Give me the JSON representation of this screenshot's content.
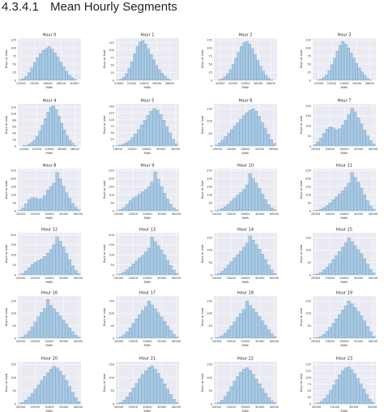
{
  "section": {
    "number": "4.3.4.1",
    "title": "Mean Hourly Segments"
  },
  "style": {
    "panel_bg": "#eaeaf2",
    "bar_fill": "#a8c8e2",
    "bar_stroke": "#5f93be",
    "grid_color": "#ffffff",
    "text_color": "#333333"
  },
  "chart_data": [
    {
      "type": "bar",
      "title": "Hour 0",
      "xlabel": "MWh",
      "ylabel": "Days at load",
      "x_ticks": [
        22000,
        24000,
        26000,
        28000,
        30000
      ],
      "xlim": [
        21500,
        31000
      ],
      "y_ticks": [
        0,
        25,
        50,
        75,
        100,
        125
      ],
      "ylim": [
        0,
        130
      ],
      "values": [
        2,
        5,
        12,
        24,
        38,
        55,
        70,
        82,
        92,
        98,
        104,
        96,
        84,
        72,
        56,
        42,
        28,
        16,
        8,
        3
      ]
    },
    {
      "type": "bar",
      "title": "Hour 1",
      "xlabel": "MWh",
      "ylabel": "Days at load",
      "x_ticks": [
        20000,
        22000,
        24000,
        26000,
        28000
      ],
      "xlim": [
        19500,
        29500
      ],
      "y_ticks": [
        0,
        25,
        50,
        75,
        100,
        125
      ],
      "ylim": [
        0,
        140
      ],
      "values": [
        1,
        4,
        10,
        22,
        40,
        62,
        88,
        112,
        128,
        132,
        120,
        104,
        86,
        68,
        50,
        36,
        24,
        14,
        6,
        2
      ]
    },
    {
      "type": "bar",
      "title": "Hour 2",
      "xlabel": "MWh",
      "ylabel": "Days at load",
      "x_ticks": [
        20000,
        22000,
        24000,
        26000,
        28000
      ],
      "xlim": [
        19000,
        29000
      ],
      "y_ticks": [
        0,
        25,
        50,
        75,
        100,
        125
      ],
      "ylim": [
        0,
        130
      ],
      "values": [
        2,
        5,
        11,
        20,
        33,
        50,
        68,
        86,
        104,
        116,
        120,
        112,
        98,
        80,
        62,
        44,
        28,
        16,
        7,
        2
      ]
    },
    {
      "type": "bar",
      "title": "Hour 3",
      "xlabel": "MWh",
      "ylabel": "Days at load",
      "x_ticks": [
        20000,
        22000,
        24000,
        26000,
        28000
      ],
      "xlim": [
        19000,
        29000
      ],
      "y_ticks": [
        0,
        25,
        50,
        75,
        100,
        125
      ],
      "ylim": [
        0,
        130
      ],
      "values": [
        1,
        3,
        8,
        16,
        30,
        48,
        68,
        90,
        108,
        120,
        112,
        100,
        84,
        68,
        52,
        38,
        26,
        15,
        7,
        2
      ]
    },
    {
      "type": "bar",
      "title": "Hour 4",
      "xlabel": "MWh",
      "ylabel": "Days at load",
      "x_ticks": [
        20000,
        22000,
        24000,
        26000,
        28000
      ],
      "xlim": [
        19000,
        29000
      ],
      "y_ticks": [
        0,
        20,
        40,
        60,
        80,
        100,
        120
      ],
      "ylim": [
        0,
        130
      ],
      "values": [
        1,
        2,
        5,
        10,
        18,
        30,
        46,
        64,
        84,
        104,
        120,
        124,
        112,
        92,
        70,
        50,
        32,
        18,
        8,
        2
      ]
    },
    {
      "type": "bar",
      "title": "Hour 5",
      "xlabel": "MWh",
      "ylabel": "Days at load",
      "x_ticks": [
        18000,
        22000,
        26000,
        30000,
        34000
      ],
      "xlim": [
        17500,
        35000
      ],
      "y_ticks": [
        0,
        25,
        50,
        75,
        100,
        125,
        150
      ],
      "ylim": [
        0,
        160
      ],
      "values": [
        1,
        3,
        6,
        12,
        20,
        32,
        46,
        62,
        80,
        98,
        116,
        132,
        142,
        136,
        120,
        98,
        74,
        50,
        26,
        8
      ]
    },
    {
      "type": "bar",
      "title": "Hour 6",
      "xlabel": "MWh",
      "ylabel": "Days at load",
      "x_ticks": [
        20000,
        24000,
        28000,
        32000,
        36000
      ],
      "xlim": [
        19000,
        37000
      ],
      "y_ticks": [
        0,
        50,
        100,
        150
      ],
      "ylim": [
        0,
        170
      ],
      "values": [
        4,
        12,
        24,
        38,
        52,
        66,
        80,
        94,
        108,
        122,
        134,
        144,
        150,
        140,
        120,
        96,
        72,
        48,
        26,
        10
      ]
    },
    {
      "type": "bar",
      "title": "Hour 7",
      "xlabel": "MWh",
      "ylabel": "Days at load",
      "x_ticks": [
        20000,
        25000,
        30000,
        35000,
        40000
      ],
      "xlim": [
        19000,
        41000
      ],
      "y_ticks": [
        0,
        50,
        100,
        150,
        200
      ],
      "ylim": [
        0,
        210
      ],
      "values": [
        6,
        20,
        40,
        62,
        84,
        96,
        90,
        80,
        86,
        104,
        128,
        156,
        188,
        170,
        140,
        110,
        80,
        52,
        28,
        10
      ]
    },
    {
      "type": "bar",
      "title": "Hour 8",
      "xlabel": "MWh",
      "ylabel": "Days at load",
      "x_ticks": [
        20000,
        25000,
        30000,
        35000,
        40000
      ],
      "xlim": [
        19000,
        41000
      ],
      "y_ticks": [
        0,
        50,
        100,
        150,
        200,
        250
      ],
      "ylim": [
        0,
        260
      ],
      "values": [
        4,
        18,
        44,
        70,
        82,
        80,
        72,
        76,
        96,
        128,
        150,
        170,
        236,
        198,
        152,
        112,
        78,
        46,
        22,
        6
      ]
    },
    {
      "type": "bar",
      "title": "Hour 9",
      "xlabel": "MWh",
      "ylabel": "Days at load",
      "x_ticks": [
        20000,
        25000,
        30000,
        35000,
        40000
      ],
      "xlim": [
        19000,
        41000
      ],
      "y_ticks": [
        0,
        50,
        100,
        150,
        200,
        250
      ],
      "ylim": [
        0,
        260
      ],
      "values": [
        2,
        8,
        20,
        40,
        62,
        80,
        92,
        104,
        118,
        132,
        150,
        176,
        240,
        196,
        150,
        108,
        72,
        42,
        18,
        6
      ]
    },
    {
      "type": "bar",
      "title": "Hour 10",
      "xlabel": "MWh",
      "ylabel": "Days at load",
      "x_ticks": [
        20000,
        25000,
        30000,
        35000,
        40000
      ],
      "xlim": [
        19000,
        41000
      ],
      "y_ticks": [
        0,
        50,
        100,
        150,
        200,
        250
      ],
      "ylim": [
        0,
        260
      ],
      "values": [
        2,
        6,
        14,
        26,
        42,
        60,
        78,
        96,
        112,
        132,
        160,
        230,
        200,
        172,
        140,
        104,
        70,
        40,
        18,
        6
      ]
    },
    {
      "type": "bar",
      "title": "Hour 11",
      "xlabel": "MWh",
      "ylabel": "Days at load",
      "x_ticks": [
        20000,
        25000,
        30000,
        35000,
        40000
      ],
      "xlim": [
        19000,
        41000
      ],
      "y_ticks": [
        0,
        50,
        100,
        150,
        200,
        250
      ],
      "ylim": [
        0,
        260
      ],
      "values": [
        2,
        4,
        10,
        20,
        34,
        50,
        68,
        86,
        104,
        124,
        146,
        170,
        236,
        206,
        176,
        140,
        100,
        62,
        30,
        10
      ]
    },
    {
      "type": "bar",
      "title": "Hour 12",
      "xlabel": "MWh",
      "ylabel": "Days at load",
      "x_ticks": [
        20000,
        25000,
        30000,
        35000,
        40000
      ],
      "xlim": [
        19000,
        41000
      ],
      "y_ticks": [
        0,
        50,
        100,
        150,
        200
      ],
      "ylim": [
        0,
        210
      ],
      "values": [
        2,
        8,
        20,
        36,
        52,
        64,
        72,
        80,
        92,
        108,
        126,
        150,
        190,
        168,
        140,
        108,
        76,
        46,
        22,
        6
      ]
    },
    {
      "type": "bar",
      "title": "Hour 13",
      "xlabel": "MWh",
      "ylabel": "Days at load",
      "x_ticks": [
        20000,
        25000,
        30000,
        35000,
        40000
      ],
      "xlim": [
        19000,
        41000
      ],
      "y_ticks": [
        0,
        50,
        100,
        150,
        200
      ],
      "ylim": [
        0,
        210
      ],
      "values": [
        2,
        6,
        14,
        26,
        40,
        56,
        70,
        84,
        98,
        114,
        134,
        188,
        166,
        146,
        124,
        100,
        74,
        48,
        24,
        8
      ]
    },
    {
      "type": "bar",
      "title": "Hour 14",
      "xlabel": "MWh",
      "ylabel": "Days at load",
      "x_ticks": [
        20000,
        25000,
        30000,
        35000,
        40000
      ],
      "xlim": [
        19000,
        41000
      ],
      "y_ticks": [
        0,
        50,
        100,
        150
      ],
      "ylim": [
        0,
        170
      ],
      "values": [
        2,
        6,
        14,
        26,
        40,
        54,
        68,
        82,
        96,
        112,
        128,
        158,
        140,
        122,
        104,
        84,
        62,
        40,
        20,
        6
      ]
    },
    {
      "type": "bar",
      "title": "Hour 15",
      "xlabel": "MWh",
      "ylabel": "Days at load",
      "x_ticks": [
        20000,
        25000,
        30000,
        35000,
        40000
      ],
      "xlim": [
        19000,
        41000
      ],
      "y_ticks": [
        0,
        50,
        100,
        150
      ],
      "ylim": [
        0,
        170
      ],
      "values": [
        2,
        4,
        10,
        20,
        32,
        46,
        62,
        78,
        94,
        112,
        130,
        150,
        134,
        118,
        102,
        86,
        66,
        44,
        22,
        8
      ]
    },
    {
      "type": "bar",
      "title": "Hour 16",
      "xlabel": "MWh",
      "ylabel": "Days at load",
      "x_ticks": [
        20000,
        25000,
        30000,
        35000,
        40000
      ],
      "xlim": [
        19000,
        41000
      ],
      "y_ticks": [
        0,
        50,
        100,
        150
      ],
      "ylim": [
        0,
        170
      ],
      "values": [
        2,
        6,
        14,
        28,
        46,
        66,
        86,
        104,
        120,
        156,
        132,
        118,
        104,
        90,
        74,
        58,
        42,
        26,
        12,
        4
      ]
    },
    {
      "type": "bar",
      "title": "Hour 17",
      "xlabel": "MWh",
      "ylabel": "Days at load",
      "x_ticks": [
        20000,
        25000,
        30000,
        35000,
        40000
      ],
      "xlim": [
        19000,
        41000
      ],
      "y_ticks": [
        0,
        50,
        100,
        150
      ],
      "ylim": [
        0,
        170
      ],
      "values": [
        2,
        6,
        14,
        26,
        42,
        60,
        78,
        96,
        112,
        128,
        150,
        134,
        118,
        102,
        86,
        68,
        50,
        32,
        16,
        5
      ]
    },
    {
      "type": "bar",
      "title": "Hour 18",
      "xlabel": "MWh",
      "ylabel": "Days at load",
      "x_ticks": [
        20000,
        25000,
        30000,
        35000,
        40000
      ],
      "xlim": [
        19000,
        41000
      ],
      "y_ticks": [
        0,
        50,
        100,
        150
      ],
      "ylim": [
        0,
        170
      ],
      "values": [
        1,
        4,
        10,
        20,
        34,
        50,
        66,
        84,
        100,
        116,
        150,
        132,
        118,
        104,
        88,
        70,
        52,
        34,
        18,
        6
      ]
    },
    {
      "type": "bar",
      "title": "Hour 19",
      "xlabel": "MWh",
      "ylabel": "Days at load",
      "x_ticks": [
        20000,
        25000,
        30000,
        35000,
        40000
      ],
      "xlim": [
        19000,
        41000
      ],
      "y_ticks": [
        0,
        50,
        100,
        150
      ],
      "ylim": [
        0,
        170
      ],
      "values": [
        1,
        3,
        8,
        16,
        28,
        44,
        60,
        78,
        96,
        114,
        130,
        150,
        138,
        124,
        108,
        90,
        70,
        48,
        26,
        8
      ]
    },
    {
      "type": "bar",
      "title": "Hour 20",
      "xlabel": "MWh",
      "ylabel": "Days at load",
      "x_ticks": [
        20000,
        25000,
        30000,
        35000,
        40000
      ],
      "xlim": [
        19000,
        41000
      ],
      "y_ticks": [
        0,
        50,
        100,
        150
      ],
      "ylim": [
        0,
        160
      ],
      "values": [
        2,
        6,
        14,
        26,
        40,
        56,
        72,
        88,
        104,
        118,
        132,
        142,
        136,
        124,
        108,
        88,
        66,
        44,
        24,
        8
      ]
    },
    {
      "type": "bar",
      "title": "Hour 21",
      "xlabel": "MWh",
      "ylabel": "Days at load",
      "x_ticks": [
        20000,
        25000,
        30000,
        35000,
        40000
      ],
      "xlim": [
        19000,
        41000
      ],
      "y_ticks": [
        0,
        50,
        100,
        150
      ],
      "ylim": [
        0,
        160
      ],
      "values": [
        2,
        6,
        14,
        26,
        42,
        60,
        78,
        96,
        112,
        126,
        138,
        144,
        132,
        116,
        96,
        76,
        56,
        36,
        18,
        6
      ]
    },
    {
      "type": "bar",
      "title": "Hour 22",
      "xlabel": "MWh",
      "ylabel": "Days at load",
      "x_ticks": [
        20000,
        25000,
        30000,
        35000,
        40000
      ],
      "xlim": [
        19000,
        41000
      ],
      "y_ticks": [
        0,
        50,
        100,
        150
      ],
      "ylim": [
        0,
        160
      ],
      "values": [
        2,
        6,
        14,
        28,
        46,
        66,
        86,
        104,
        120,
        132,
        138,
        128,
        112,
        94,
        76,
        58,
        40,
        24,
        12,
        4
      ]
    },
    {
      "type": "bar",
      "title": "Hour 23",
      "xlabel": "MWh",
      "ylabel": "Days at load",
      "x_ticks": [
        20000,
        25000,
        30000,
        35000
      ],
      "xlim": [
        19000,
        36000
      ],
      "y_ticks": [
        0,
        25,
        50,
        75,
        100,
        125,
        150
      ],
      "ylim": [
        0,
        160
      ],
      "values": [
        1,
        4,
        10,
        20,
        34,
        52,
        72,
        92,
        110,
        126,
        136,
        140,
        130,
        114,
        96,
        76,
        56,
        36,
        18,
        6
      ]
    }
  ]
}
